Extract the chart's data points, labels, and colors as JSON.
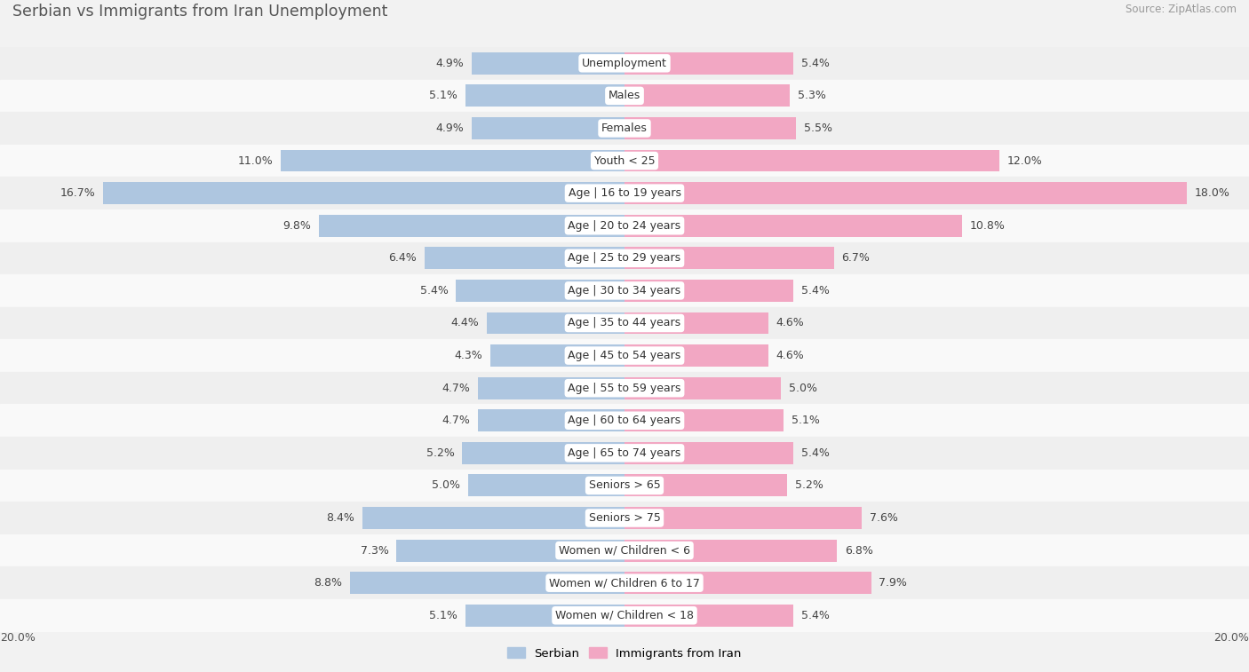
{
  "title": "Serbian vs Immigrants from Iran Unemployment",
  "source": "Source: ZipAtlas.com",
  "categories": [
    "Unemployment",
    "Males",
    "Females",
    "Youth < 25",
    "Age | 16 to 19 years",
    "Age | 20 to 24 years",
    "Age | 25 to 29 years",
    "Age | 30 to 34 years",
    "Age | 35 to 44 years",
    "Age | 45 to 54 years",
    "Age | 55 to 59 years",
    "Age | 60 to 64 years",
    "Age | 65 to 74 years",
    "Seniors > 65",
    "Seniors > 75",
    "Women w/ Children < 6",
    "Women w/ Children 6 to 17",
    "Women w/ Children < 18"
  ],
  "serbian": [
    4.9,
    5.1,
    4.9,
    11.0,
    16.7,
    9.8,
    6.4,
    5.4,
    4.4,
    4.3,
    4.7,
    4.7,
    5.2,
    5.0,
    8.4,
    7.3,
    8.8,
    5.1
  ],
  "iran": [
    5.4,
    5.3,
    5.5,
    12.0,
    18.0,
    10.8,
    6.7,
    5.4,
    4.6,
    4.6,
    5.0,
    5.1,
    5.4,
    5.2,
    7.6,
    6.8,
    7.9,
    5.4
  ],
  "max_val": 20.0,
  "serbian_color": "#aec6e0",
  "iran_color": "#f2a7c3",
  "bar_height": 0.68,
  "title_fontsize": 12.5,
  "label_fontsize": 9,
  "value_fontsize": 9,
  "legend_fontsize": 9.5,
  "row_colors": [
    "#efefef",
    "#f9f9f9"
  ]
}
